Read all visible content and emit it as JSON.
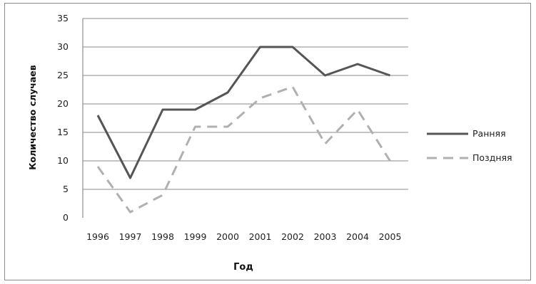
{
  "chart_data": {
    "type": "line",
    "title": "",
    "xlabel": "Год",
    "ylabel": "Количество случаев",
    "categories": [
      "1996",
      "1997",
      "1998",
      "1999",
      "2000",
      "2001",
      "2002",
      "2003",
      "2004",
      "2005"
    ],
    "ylim": [
      0,
      35
    ],
    "yticks": [
      0,
      5,
      10,
      15,
      20,
      25,
      30,
      35
    ],
    "grid": "horizontal",
    "legend_position": "right",
    "series": [
      {
        "name": "Ранняя",
        "values": [
          18,
          7,
          19,
          19,
          22,
          30,
          30,
          25,
          27,
          25
        ],
        "color": "#555555",
        "style": "solid"
      },
      {
        "name": "Поздняя",
        "values": [
          9,
          1,
          4,
          16,
          16,
          21,
          23,
          13,
          19,
          10
        ],
        "color": "#b0b0b0",
        "style": "dashed"
      }
    ]
  }
}
